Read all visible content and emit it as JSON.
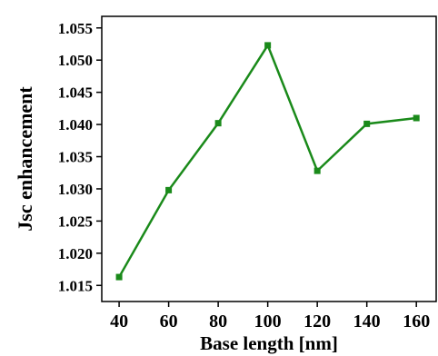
{
  "chart_data": {
    "type": "line",
    "title": "",
    "xlabel": "Base length [nm]",
    "ylabel": "Jsc enhancement",
    "x": [
      40,
      60,
      80,
      100,
      120,
      140,
      160
    ],
    "series": [
      {
        "values": [
          1.0163,
          1.0298,
          1.0402,
          1.0523,
          1.0328,
          1.0401,
          1.041
        ],
        "color": "#1a8a1a"
      }
    ],
    "xlim": [
      33,
      168
    ],
    "ylim": [
      1.0125,
      1.0568
    ],
    "xticks": [
      "40",
      "60",
      "80",
      "100",
      "120",
      "140",
      "160"
    ],
    "yticks": [
      "1.015",
      "1.020",
      "1.025",
      "1.030",
      "1.035",
      "1.040",
      "1.045",
      "1.050",
      "1.055"
    ],
    "marker": "square",
    "grid": false,
    "legend": "none"
  }
}
